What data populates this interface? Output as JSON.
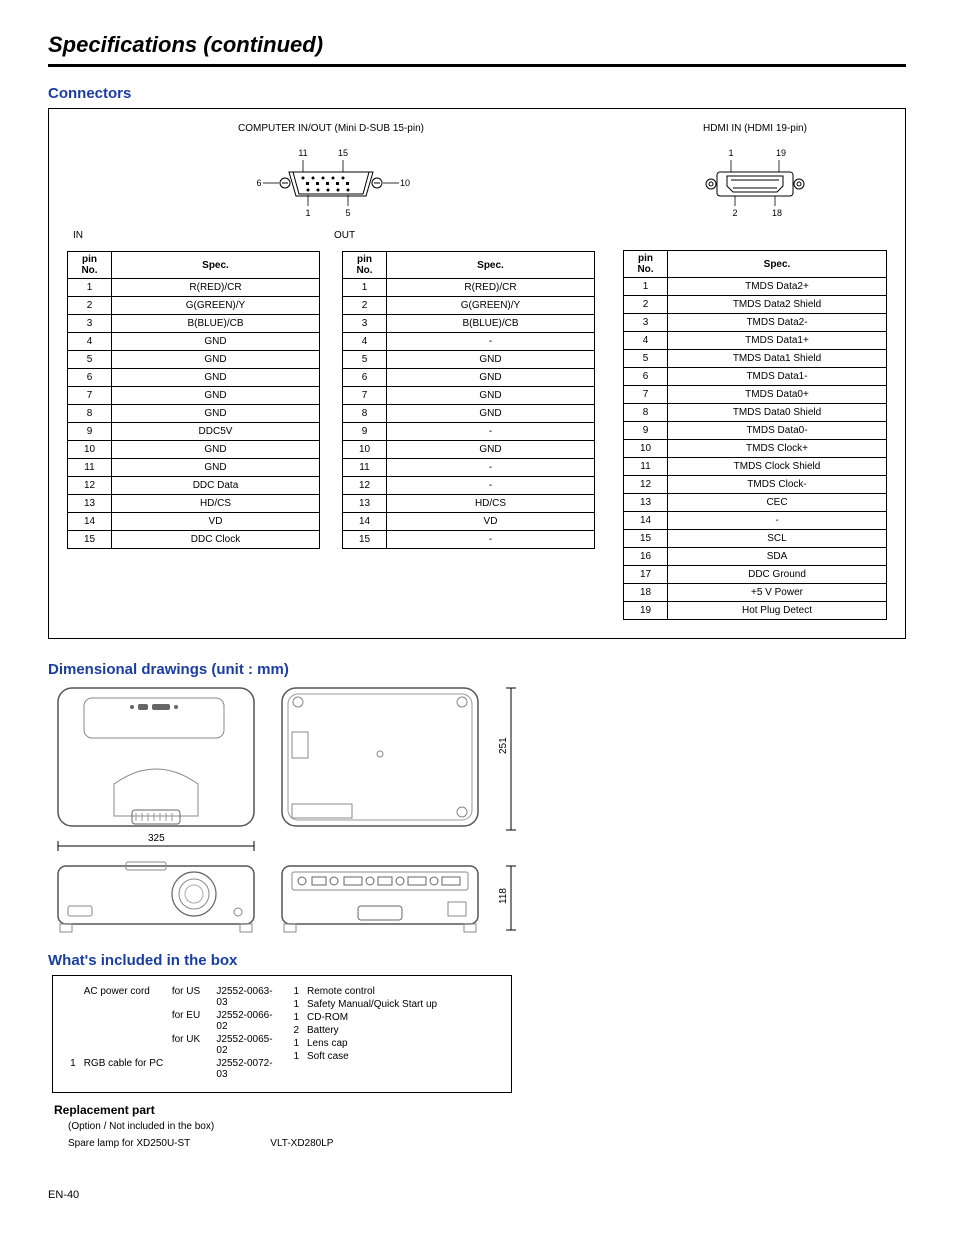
{
  "page_title": "Specifications (continued)",
  "page_number": "EN-40",
  "connectors": {
    "heading": "Connectors",
    "dsub": {
      "title": "COMPUTER IN/OUT (Mini D-SUB 15-pin)",
      "pin_labels": {
        "tl": "11",
        "tr": "15",
        "ml": "6",
        "mr": "10",
        "bl": "1",
        "br": "5"
      },
      "in_label": "IN",
      "out_label": "OUT"
    },
    "hdmi": {
      "title": "HDMI IN (HDMI 19-pin)",
      "pin_labels": {
        "tl": "1",
        "tr": "19",
        "bl": "2",
        "br": "18"
      }
    },
    "table_headers": {
      "pin": "pin No.",
      "spec": "Spec."
    },
    "in_table": [
      [
        "1",
        "R(RED)/CR"
      ],
      [
        "2",
        "G(GREEN)/Y"
      ],
      [
        "3",
        "B(BLUE)/CB"
      ],
      [
        "4",
        "GND"
      ],
      [
        "5",
        "GND"
      ],
      [
        "6",
        "GND"
      ],
      [
        "7",
        "GND"
      ],
      [
        "8",
        "GND"
      ],
      [
        "9",
        "DDC5V"
      ],
      [
        "10",
        "GND"
      ],
      [
        "11",
        "GND"
      ],
      [
        "12",
        "DDC Data"
      ],
      [
        "13",
        "HD/CS"
      ],
      [
        "14",
        "VD"
      ],
      [
        "15",
        "DDC Clock"
      ]
    ],
    "out_table": [
      [
        "1",
        "R(RED)/CR"
      ],
      [
        "2",
        "G(GREEN)/Y"
      ],
      [
        "3",
        "B(BLUE)/CB"
      ],
      [
        "4",
        "-"
      ],
      [
        "5",
        "GND"
      ],
      [
        "6",
        "GND"
      ],
      [
        "7",
        "GND"
      ],
      [
        "8",
        "GND"
      ],
      [
        "9",
        "-"
      ],
      [
        "10",
        "GND"
      ],
      [
        "11",
        "-"
      ],
      [
        "12",
        "-"
      ],
      [
        "13",
        "HD/CS"
      ],
      [
        "14",
        "VD"
      ],
      [
        "15",
        "-"
      ]
    ],
    "hdmi_table": [
      [
        "1",
        "TMDS Data2+"
      ],
      [
        "2",
        "TMDS Data2 Shield"
      ],
      [
        "3",
        "TMDS Data2-"
      ],
      [
        "4",
        "TMDS Data1+"
      ],
      [
        "5",
        "TMDS Data1 Shield"
      ],
      [
        "6",
        "TMDS Data1-"
      ],
      [
        "7",
        "TMDS Data0+"
      ],
      [
        "8",
        "TMDS Data0 Shield"
      ],
      [
        "9",
        "TMDS Data0-"
      ],
      [
        "10",
        "TMDS Clock+"
      ],
      [
        "11",
        "TMDS Clock Shield"
      ],
      [
        "12",
        "TMDS Clock-"
      ],
      [
        "13",
        "CEC"
      ],
      [
        "14",
        "-"
      ],
      [
        "15",
        "SCL"
      ],
      [
        "16",
        "SDA"
      ],
      [
        "17",
        "DDC Ground"
      ],
      [
        "18",
        "+5 V Power"
      ],
      [
        "19",
        "Hot Plug Detect"
      ]
    ]
  },
  "dimensions": {
    "heading": "Dimensional drawings (unit : mm)",
    "width": "325",
    "depth": "251",
    "height": "118"
  },
  "included": {
    "heading": "What's included in the box",
    "left": [
      {
        "qty": "",
        "name": "AC power cord",
        "sub": "for US",
        "code": "J2552-0063-03"
      },
      {
        "qty": "",
        "name": "",
        "sub": "for EU",
        "code": "J2552-0066-02"
      },
      {
        "qty": "",
        "name": "",
        "sub": "for UK",
        "code": "J2552-0065-02"
      },
      {
        "qty": "1",
        "name": "RGB cable for PC",
        "sub": "",
        "code": "J2552-0072-03"
      }
    ],
    "right": [
      {
        "qty": "1",
        "name": "Remote control"
      },
      {
        "qty": "1",
        "name": "Safety Manual/Quick Start up"
      },
      {
        "qty": "1",
        "name": "CD-ROM"
      },
      {
        "qty": "2",
        "name": "Battery"
      },
      {
        "qty": "1",
        "name": "Lens cap"
      },
      {
        "qty": "1",
        "name": "Soft case"
      }
    ]
  },
  "replacement": {
    "heading": "Replacement part",
    "note": "(Option / Not included in the box)",
    "item": "Spare lamp for XD250U-ST",
    "code": "VLT-XD280LP"
  }
}
